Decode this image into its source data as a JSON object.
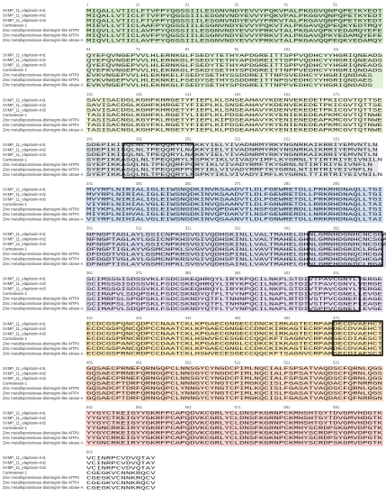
{
  "labels": [
    "SVMP_11_elapitoxin-mi1",
    "SVMP_11_elapitoxin-mi2",
    "SVMP_11_elapitoxin-mi3",
    "Carinatease-1",
    "Zinc metalloproteinase-disintegrin-like MTP9",
    "Zinc metalloproteinase-disintegrin-like MTP4",
    "Zinc metalloproteinase-disintegrin-like atrase-A"
  ],
  "blocks": [
    {
      "positions": [
        1,
        11,
        21,
        31,
        41,
        51
      ],
      "rows": [
        "MIQALLVTICLFTVFPYQGSSIILESGNVNDYEVVYPQKVPALPKGGVQNPQPETKYEDT",
        "MIQALLVTICLFTVFPYQGSSIILESGNVNDYEVVYPQKVPALPKGGVQNPQPETKYEDT",
        "MIQALLVTICLFTVFPYQGSSIILESGNVNDYEVVYPRKVTALPKGAVQNPQPETKYEDT",
        "MIEVLLVTICLAAFPYQGSSIILESGNVNDYEVVYPQKVTALPKGAVQQPEQKYEDTMQY",
        "MIQVLLVTICLAVFPYQGSSIILESGNVNDYEVVYPRKVTALPKGAVQPKYEDAMQYEFE",
        "MIQVLLVTICLAVFPYQGSSIILESGNVNDYEVVYPRKVTALPKGAVQPKYEDAMQYEFE",
        "MIQVLLVTICLAVFPYQGSSIILESGNVNDYEVVYPRKVTALPKGAVQQPEQKYEDAMQY"
      ]
    },
    {
      "positions": [
        61,
        71,
        81,
        91,
        101,
        111
      ],
      "rows": [
        "QYEFQVNGEPVVLHLERNKGLFSEDYTETHYAPDGREITTSPPVQDHCYYHGRIQNEADS",
        "QYEFQVNGEPVVLHLERNKGLFSEDYTETHYAPDGREITTSPPVQDHCYYHGRIQNEADS",
        "QYEFQVNGEPVVLHLERNKGLFSEDYTETHYAPDGREITTSPPVQDHCYYHGRIQNEADS",
        "QYEFKVNGEPVVLHLEKNKGLFSKDYSETHYSPDGREITTNPPVEDHCYYHGRIQNDADS",
        "EVKVNGEPVVLHLEKNKELFSEDYSETHYSSDDREITTNPSVEDHCYYHGRIQNDAES",
        "EVKVNGEPVVLHLEKNKELFSEDYSETHYSSDDREITTNPSVEDHCYYHGRIQNDAES",
        "EVKVNGEPVVLHLEKNKGLFSEDYSETHYSPDGREITTNPPVEDHCYYHGRIQNDADS"
      ]
    },
    {
      "positions": [
        121,
        131,
        141,
        151,
        161,
        171
      ],
      "rows": [
        "SAVISACDGLKGHFKHRGETYFIEPLKLSNSEAHAVYKDENVEKEDETPKICGVTQTTSE",
        "SAVISACDGLKGHFKHRGETYFIEPLKLSNSEAHAVYKDENVEKEDETPKICGVTQTTSE",
        "SAVISACDGLKGHFKHRGETYFIEPLKLSNSEAHAVYKDENVEKEDETPKICGVTQTTSE",
        "TASISACNGLKGHFKLRGETYLIEPLKLPDSEAHAVYKYENIEKEDEAPKMCGVTQTNWE",
        "TASISACNGLKGYFKLRGETYFIEPLKIPDSEAHAVYKYENIENEDEAPKMCGVTQTNWE",
        "TASISACNGLKGYFKLRGETYFIEPLKIPDSEAHAVYKYENIENEDEAPKMCGVTQTNWE",
        "TASISACNGLKGHFKLRGETYFIEPLKLPDSEAHAVYKYENIEKEDEAPKMCGVTQTNWE"
      ]
    },
    {
      "positions": [
        181,
        191,
        201,
        211,
        221,
        231
      ],
      "rows": [
        "SDEPIKISQLNLTPEQQRYLNAKKYIELYIVADNRMYRKYNGNRKAIKRRIYEMVNTLN",
        "SDEPIKISQLNLTPEQQRYLNAKKYIELYIVADNRMYRKYNGNRKAIKRRIYEMVNTLN",
        "SDEPIKISQLNLTPEQQRYLNAKKYIELYIVADNRMYRKYNGNRKAIKRRIYEMVNTLN",
        "SYEPIKKASQLNLTPEQQRYLNSPKYIKLVIVADYIMFLKYGRNLTTIRTRIYEIVNILN",
        "SYEPIKKASQLNLTPEQQRFPQRYIKLVIVADYRMFTKYGRNLNTIRTRIYEIVNFLN",
        "SYEPIKKASQLNLTPEQQRFPQRYIKLVIVADYRMFTKYGRNLNTIRTRIYEIVNFLN",
        "SYEPIKKASQLNLTPEQQRYLNSPKYIKLVIVADYIMFLKYGRNLTTIRTRIYEIVNILN"
      ]
    },
    {
      "positions": [
        241,
        251,
        261,
        271,
        281,
        291
      ],
      "rows": [
        "MVYRPLNIRIALIGLEIWSNQDKINVKSAADVTLDLFGEWRETDLLPRKRHDNAQLLTGI",
        "MVYRPLNIRIALIGLEIWSNQDKINVKSAADVTLDLFGEWRETDLLPRKRHDNAQLLTGI",
        "MVYRPLNIRIALIGLEIWSNQDKINVKSAADVTLDLFGEWRETDLLPRKRHDNAQLLTGI",
        "VIYRFLNIHIALVGLEIWSNGDKINVQSAANVTLDLFGNWRETDLLRRKRHDNAQLLTAI",
        "MIYKPLNIHVALIGLEIWSNGDKINVQPDAKVTLNSFGEWRERDLLNRKRHDNAQLLTGI",
        "MIYKPLNIHVALIGLEIWSNGDKINVQPDAKVTLNSFGEWRERDLLNRKRHDNAQLLTGI",
        "VIYRFLNIHIALVGLEIWSNGDKINVQSAANVTLDLFGNWRETDLLRRKRHDNAQLLTAI"
      ]
    },
    {
      "positions": [
        301,
        311,
        321,
        331,
        341,
        351
      ],
      "rows": [
        "NFNGPTAGLAYLGSICNPKHSVGIVQDHSKINLLVALTMAHELGHNLGMNHDGNHCNCSGA",
        "NFNGPTAGLAYLGSICNPKHSVGIVQDHSKINLLVALTMAHELGHNLGMNHDGNHCNCSGA",
        "NFNGPTAGLAYLGSICNPKHSVGIVQDHSKINLLVALTMAHELGHNLGMNHDGNHCNCSGA",
        "DFNGPTIGLAYVGSMCHPKLSVGVVQDHSAINLLVAVTMAHELGHNLGMEHDGKDCLRGA",
        "DFDGDTVGLAYLGSMCNPKRSVGIVQDHSPINLLVAVTMAHELGHNLGMDHDGNQCHCGA",
        "DFDGDTVGLAYLGSMCNPKRSVGIVQDHSPINLLVAVTMAHELGHNLGMDHDGNQCHCGA",
        "DFNGPTIGLAYVGSMCHPKLSVGVVQDHSAINLLVAVTMAHELGHNLGMEHDGKDCLRGA"
      ]
    },
    {
      "positions": [
        361,
        371,
        381,
        391,
        401,
        411
      ],
      "rows": [
        "SCIMSSGISDSSVKLFSDCSKEQHRQYLIRYKPQCILNKPLSTDIVTPAVCGNYLVERGE",
        "SCIMSSGISDSSVKLFSDCSKEQHRQYLIRYKPQCILNKPLSTDIVTPAVCGNYLVERGE",
        "SCIMSSGISDSSVKLFSDCSKEQHRQYLIRYKPQCILNKPLSTDIVTPAVCGNYLVERGE",
        "SCIMAPVLSDQPSKLFSDCSKNDYQTFLTVYNPQCILNAPLRTDIVSPPVCGNELLEVGE",
        "SCIMRPSLSPGPSKLFSDCSKNDYQTFLTNHNPQCILNAPLRTDTVSTPVCGNEFLEAGE",
        "SCIMRPSLSPGPSKLFSDCSKNDYQTFLTNHNPQCILNAPLRTDTVSTPVCGNEFLEAGE",
        "SCIMAPVLSDQPSKLFSDCSKNDYQTFLTVYNPQCILNAPLRTDIVSPPVCGNELLEVGE"
      ]
    },
    {
      "positions": [
        421,
        431,
        441,
        451,
        461,
        471
      ],
      "rows": [
        "ECDCGSPQNCQDPCCNAATCKLKPGAECGNGECCDNCKIRKAGTECRPARDECDVAEHCT",
        "ECDCGSPQNCQDPCCNAATCKLKPGAECGNGECCDNCKIRKAGTECRPARDECDVAEHCT",
        "ECDCGSPQNCQDPCCNAATCKLKPGAECGNGECCDNCKIRKAGTECRPARDECDVAEHCT",
        "ECDCGSPRNCRDPCCDAATCKLHSWVECESGECCQQCKFTSAGNVCRPARSECDIAESCT",
        "ECDCGSPANCQDPCCDAATCKLKPGAECGNGLCCDKCKIKKAGTECRPARDECDVAEHCT",
        "ECDCGSPANCQDPCCDAATCKLKPGAECGNGLCCDKCKIKKAGTECRPARDECDVAEHCT",
        "ECDCGSPRNCRDPCCDAATCKLHSWVECESGECCQQCKFTSAGNVCRPARSECDIAESCT"
      ]
    },
    {
      "positions": [
        481,
        491,
        501,
        511,
        521,
        531
      ],
      "rows": [
        "GQSAECPRNEFQRNGQPCLNNSGYCYNGDCPIMLNQCIALFSPSATVAQDSCFQRNLQGS",
        "GQSAECPRNEFQRNGQPCLNNSGYCYNGDCPIMLNQCIALFSPSATVAQDSCFQRNLQGS",
        "GQSAECPRNEFQRNGQPCLNNSGYCYNGDCPIMLNQCIALFSPSATVAQDSCFQRNLQGS",
        "GQSAECPTDRFQRNGQPCLNNNGYCYNGTCPIMGKQCISLFGASATVAQDACFQFNRRGN",
        "GQSADCPTDRFQRNGQPCLYNNGYCYNGTCPIMLKQCISLFGASATVAQDSCFQRNLQGS",
        "GQSADCPTDRFQRNGQPCLYNNGYCYNGTCPIMLKQCISLFGASATVAQDSCFQRNLQGS",
        "GQSAECPTDRFQRNGQPCLNNNGYCYNGTCPIMGKQCISLFGASATVAQDACFQFNRRGN"
      ]
    },
    {
      "positions": [
        541,
        551,
        561,
        571,
        581,
        591
      ],
      "rows": [
        "YYGYCTKEIGYYGKRFPCAPQDVKCGRLYCLDNSFKGRNPCKMHSHTGYTDVGMVHDGTK",
        "YYGYCTKEIGYYGKRFPCAPQDVKCGRLYCLDNSFKGRNPCKMHSHTGYTDVGMVHDGTK",
        "YYGYCTKEIGYYGKRFPCAPQDVKCGRLYCLDNSFKGRNPCKMHSHTGYTDVGMVHDGTK",
        "YYGNCRKEIRYYGKRFPCAPQDVKCGRLYCLDNSFKGRNPCKMHYSCRDPSKGMVDPGTK",
        "YYGYCRKEIGYYGKRFPCAPQDVKCGRLYCLDNSFKGKNPCKMHYSCRDPSYGMVDPGTK",
        "YYGYCRKEIGYYGKRFPCAPQDVKCGRLYCLDNSFKGKNPCKMHYSCRDPSYGMVDPGTK",
        "YYGNCRKEIRYYGKRFPCAPQDVKCGRLYCLDNSFKGRNPCKMHYSCRDPSKGMVDPGTK"
      ]
    },
    {
      "positions": [
        601
      ],
      "rows": [
        "VCINRPCVDVQTAY",
        "VCINRPCVDVQTAY",
        "VCINRPCVDVQTAY",
        "CGEGKVCNNKRQCV",
        "CGEGKVCNNKRQCV",
        "CGEGKVCNNKRQCV",
        "CGEGKVCNNKRQCV"
      ]
    }
  ]
}
